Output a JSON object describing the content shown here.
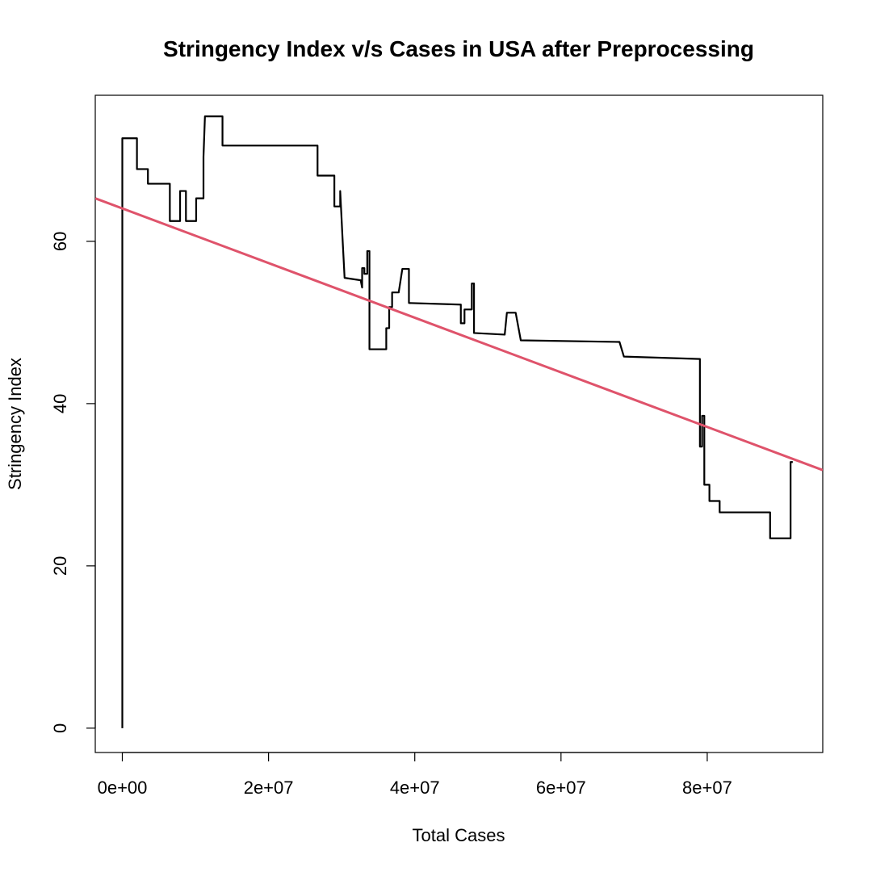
{
  "chart_data": {
    "type": "line",
    "title": "Stringency Index v/s Cases in USA after Preprocessing",
    "xlabel": "Total Cases",
    "ylabel": "Stringency Index",
    "xlim": [
      -3700000,
      95800000
    ],
    "ylim": [
      -3,
      78
    ],
    "x_ticks": [
      0,
      20000000,
      40000000,
      60000000,
      80000000
    ],
    "x_tick_labels": [
      "0e+00",
      "2e+07",
      "4e+07",
      "6e+07",
      "8e+07"
    ],
    "y_ticks": [
      0,
      20,
      40,
      60
    ],
    "y_tick_labels": [
      "0",
      "20",
      "40",
      "60"
    ],
    "grid": false,
    "legend": "none",
    "series": [
      {
        "color": "#000000",
        "points": [
          [
            0,
            0
          ],
          [
            0,
            72.7
          ],
          [
            2000000,
            72.7
          ],
          [
            2000000,
            68.9
          ],
          [
            3500000,
            68.9
          ],
          [
            3500000,
            67.1
          ],
          [
            6500000,
            67.1
          ],
          [
            6500000,
            62.5
          ],
          [
            7900000,
            62.5
          ],
          [
            7900000,
            66.2
          ],
          [
            8700000,
            66.2
          ],
          [
            8700000,
            62.5
          ],
          [
            10100000,
            62.5
          ],
          [
            10100000,
            65.3
          ],
          [
            11100000,
            65.3
          ],
          [
            11100000,
            70.4
          ],
          [
            11300000,
            75.4
          ],
          [
            13700000,
            75.4
          ],
          [
            13700000,
            71.8
          ],
          [
            26700000,
            71.8
          ],
          [
            26700000,
            68.1
          ],
          [
            29000000,
            68.1
          ],
          [
            29000000,
            64.3
          ],
          [
            29800000,
            64.3
          ],
          [
            29800000,
            66.2
          ],
          [
            30100000,
            60.7
          ],
          [
            30400000,
            55.5
          ],
          [
            32600000,
            55.2
          ],
          [
            32800000,
            54.3
          ],
          [
            32800000,
            56.7
          ],
          [
            33100000,
            56.7
          ],
          [
            33100000,
            56.0
          ],
          [
            33500000,
            56.0
          ],
          [
            33500000,
            58.8
          ],
          [
            33800000,
            58.8
          ],
          [
            33800000,
            46.7
          ],
          [
            36100000,
            46.7
          ],
          [
            36100000,
            49.3
          ],
          [
            36500000,
            49.3
          ],
          [
            36500000,
            51.9
          ],
          [
            36900000,
            51.9
          ],
          [
            36900000,
            53.7
          ],
          [
            37800000,
            53.7
          ],
          [
            38300000,
            56.6
          ],
          [
            39200000,
            56.6
          ],
          [
            39200000,
            52.4
          ],
          [
            46300000,
            52.2
          ],
          [
            46300000,
            49.9
          ],
          [
            46800000,
            49.9
          ],
          [
            46800000,
            51.6
          ],
          [
            47800000,
            51.6
          ],
          [
            47800000,
            54.8
          ],
          [
            48100000,
            54.8
          ],
          [
            48100000,
            48.7
          ],
          [
            52300000,
            48.5
          ],
          [
            52600000,
            51.2
          ],
          [
            53800000,
            51.2
          ],
          [
            54500000,
            47.8
          ],
          [
            68000000,
            47.6
          ],
          [
            68600000,
            45.8
          ],
          [
            79000000,
            45.5
          ],
          [
            79000000,
            34.7
          ],
          [
            79300000,
            34.7
          ],
          [
            79300000,
            38.5
          ],
          [
            79600000,
            38.5
          ],
          [
            79600000,
            30.0
          ],
          [
            80300000,
            30.0
          ],
          [
            80300000,
            28.0
          ],
          [
            81700000,
            28.0
          ],
          [
            81700000,
            26.6
          ],
          [
            88600000,
            26.6
          ],
          [
            88600000,
            23.4
          ],
          [
            91400000,
            23.4
          ],
          [
            91400000,
            32.8
          ],
          [
            91700000,
            32.8
          ]
        ]
      },
      {
        "color": "#df536b",
        "points": [
          [
            -3700000,
            65.3
          ],
          [
            95800000,
            31.8
          ]
        ]
      }
    ]
  }
}
